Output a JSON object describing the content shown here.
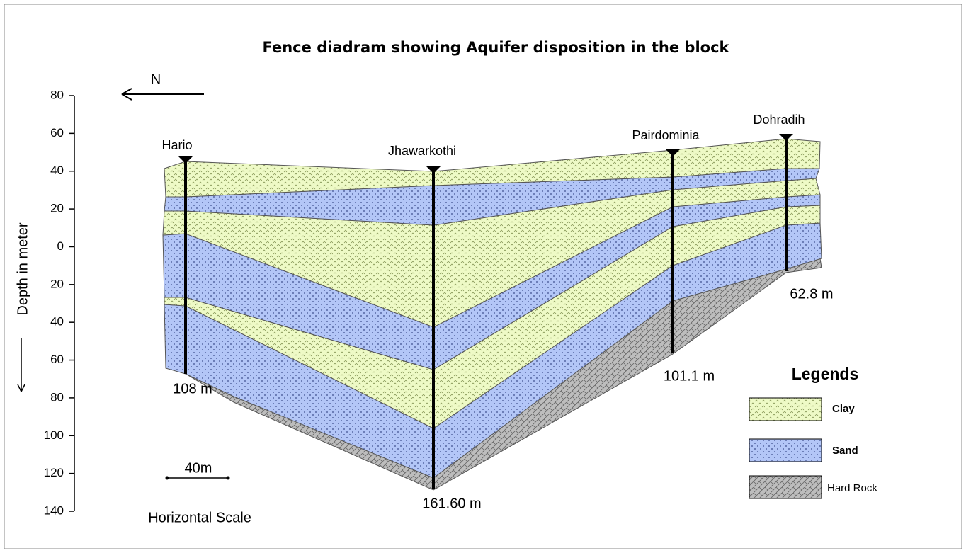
{
  "title": "Fence diadram showing Aquifer disposition in the block",
  "north": "N",
  "axis": {
    "label": "Depth in meter",
    "ticks": [
      "80",
      "60",
      "40",
      "20",
      "0",
      "20",
      "40",
      "60",
      "80",
      "100",
      "120",
      "140"
    ]
  },
  "boreholes": [
    {
      "name": "Hario",
      "depth": "108 m"
    },
    {
      "name": "Jhawarkothi",
      "depth": "161.60 m"
    },
    {
      "name": "Pairdominia",
      "depth": "101.1 m"
    },
    {
      "name": "Dohradih",
      "depth": "62.8 m"
    }
  ],
  "scale": {
    "length": "40m",
    "label": "Horizontal Scale"
  },
  "legend": {
    "title": "Legends",
    "items": [
      "Clay",
      "Sand",
      "Hard Rock"
    ]
  }
}
